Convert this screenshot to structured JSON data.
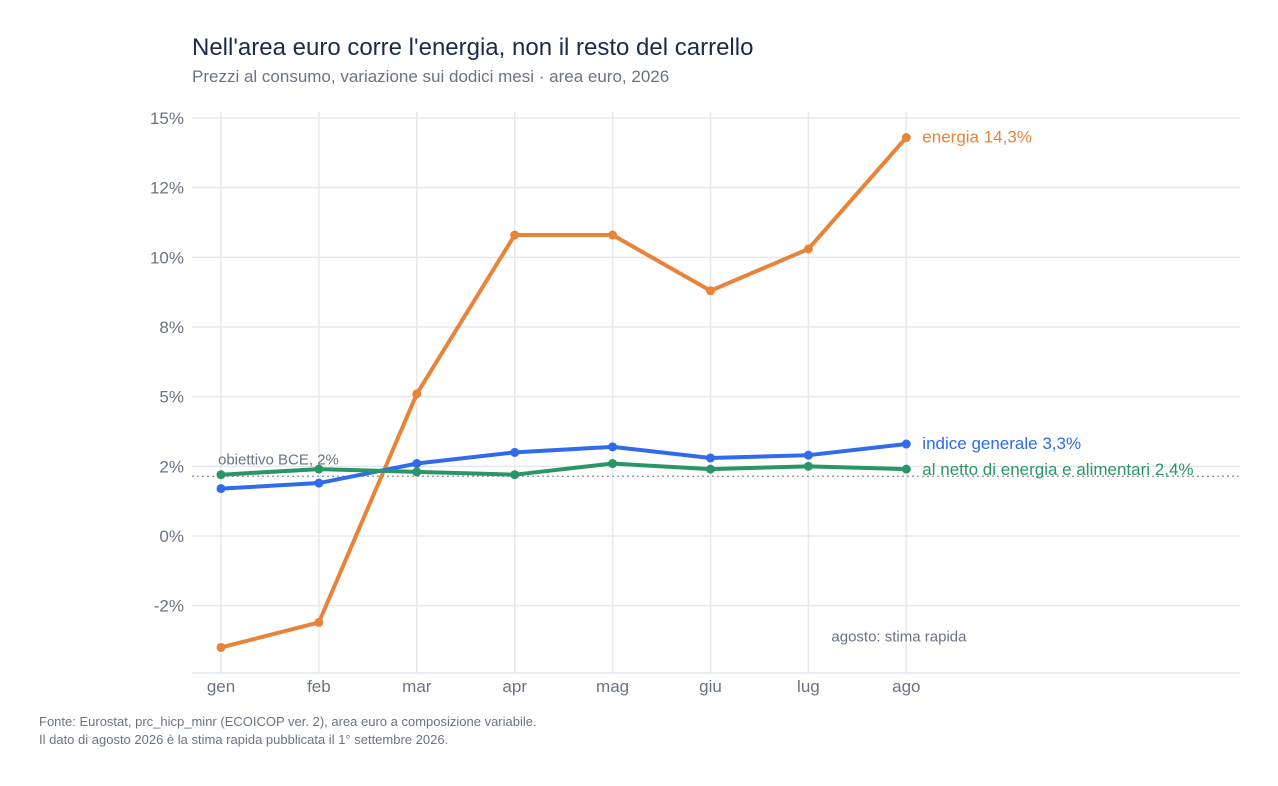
{
  "header": {
    "title": "Nell'area euro corre l'energia, non il resto del carrello",
    "subtitle": "Prezzi al consumo, variazione sui dodici mesi · area euro, 2026"
  },
  "source": {
    "line1": "Fonte: Eurostat, prc_hicp_minr (ECOICOP ver. 2), area euro a composizione variabile.",
    "line2": "Il dato di agosto 2026 è la stima rapida pubblicata il 1° settembre 2026."
  },
  "chart_data": {
    "type": "line",
    "title": "Nell'area euro corre l'energia, non il resto del carrello",
    "subtitle": "Prezzi al consumo, variazione sui dodici mesi · area euro, 2026",
    "xlabel": "",
    "ylabel": "",
    "categories": [
      "gen",
      "feb",
      "mar",
      "apr",
      "mag",
      "giu",
      "lug",
      "ago"
    ],
    "ylim": [
      -5.5,
      15.0
    ],
    "yticks": [
      {
        "value": 15,
        "label": "15%"
      },
      {
        "value": 12.5,
        "label": "12%"
      },
      {
        "value": 10,
        "label": "10%"
      },
      {
        "value": 7.5,
        "label": "8%"
      },
      {
        "value": 5,
        "label": "5%"
      },
      {
        "value": 2.5,
        "label": "2%"
      },
      {
        "value": 0,
        "label": "0%"
      },
      {
        "value": -2.5,
        "label": "-2%"
      }
    ],
    "grid": true,
    "series": [
      {
        "name": "energia",
        "color": "#e8843a",
        "values": [
          -4.0,
          -3.1,
          5.1,
          10.8,
          10.8,
          8.8,
          10.3,
          14.3
        ],
        "end_label": "energia  14,3%"
      },
      {
        "name": "indice generale",
        "color": "#2f6bec",
        "values": [
          1.7,
          1.9,
          2.6,
          3.0,
          3.2,
          2.8,
          2.9,
          3.3
        ],
        "end_label": "indice generale  3,3%"
      },
      {
        "name": "al netto di energia e alimentari",
        "color": "#2a9667",
        "values": [
          2.2,
          2.4,
          2.3,
          2.2,
          2.6,
          2.4,
          2.5,
          2.4
        ],
        "end_label": "al netto di energia e alimentari  2,4%"
      }
    ],
    "reference_line": {
      "value": 2.0,
      "label": "obiettivo BCE, 2%",
      "color": "#8a8f99"
    },
    "annotations": [
      {
        "text": "agosto: stima rapida",
        "x": "lug",
        "y": -3.0
      }
    ]
  }
}
